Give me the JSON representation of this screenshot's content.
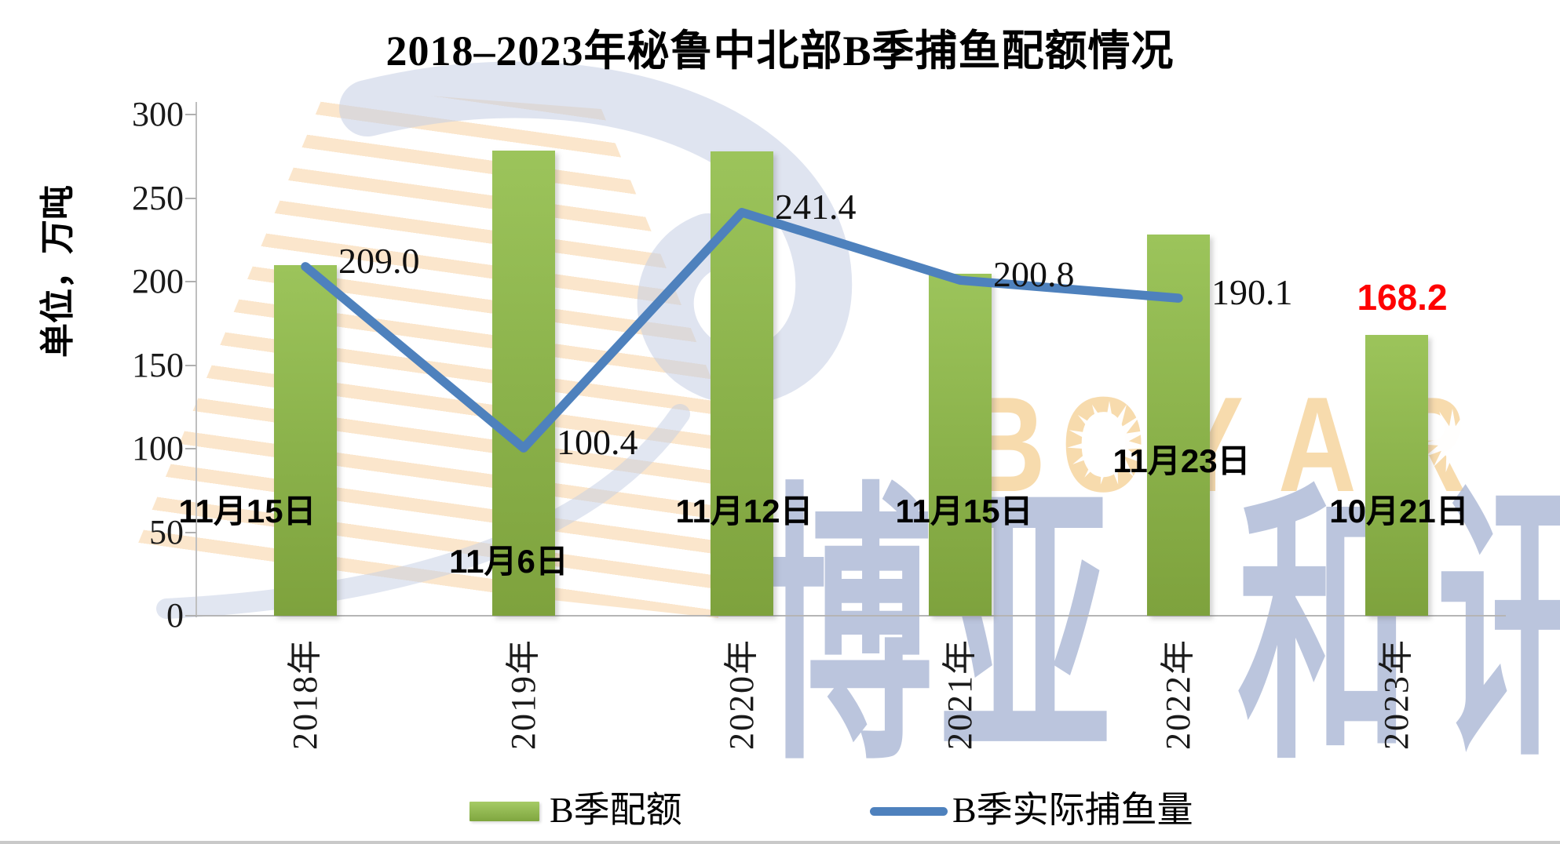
{
  "title": "2018–2023年秘鲁中北部B季捕鱼配额情况",
  "y_axis_title": "单位，万吨",
  "legend": {
    "bars": "B季配额",
    "line": "B季实际捕鱼量"
  },
  "watermark": {
    "letters": [
      "B",
      "O",
      "Y",
      "A",
      "R"
    ],
    "cn_text": "博亚和讯"
  },
  "colors": {
    "bar_top": "#9CC45B",
    "bar_bottom": "#7EA23D",
    "line": "#4E81BD",
    "highlight": "#FE0202",
    "axis": "#BFBFBF",
    "watermark_orange": "#F6D6A2",
    "watermark_blue": "#AAB7D5"
  },
  "chart_data": {
    "type": "bar",
    "title": "2018–2023年秘鲁中北部B季捕鱼配额情况",
    "xlabel": "",
    "ylabel": "单位，万吨",
    "ylim": [
      0,
      300
    ],
    "yticks": [
      300,
      250,
      200,
      150,
      100,
      50,
      0
    ],
    "grid": false,
    "legend_position": "bottom",
    "categories": [
      "2018年",
      "2019年",
      "2020年",
      "2021年",
      "2022年",
      "2023年"
    ],
    "series": [
      {
        "name": "B季配额",
        "type": "bar",
        "values": [
          210.0,
          278.6,
          278.0,
          204.7,
          228.3,
          168.2
        ],
        "value_labels": [
          null,
          null,
          null,
          null,
          null,
          "168.2"
        ],
        "date_labels": [
          "11月15日",
          "11月6日",
          "11月12日",
          "11月15日",
          "11月23日",
          "10月21日"
        ]
      },
      {
        "name": "B季实际捕鱼量",
        "type": "line",
        "values": [
          209.0,
          100.4,
          241.4,
          200.8,
          190.1,
          null
        ],
        "value_labels": [
          "209.0",
          "100.4",
          "241.4",
          "200.8",
          "190.1",
          null
        ]
      }
    ]
  }
}
